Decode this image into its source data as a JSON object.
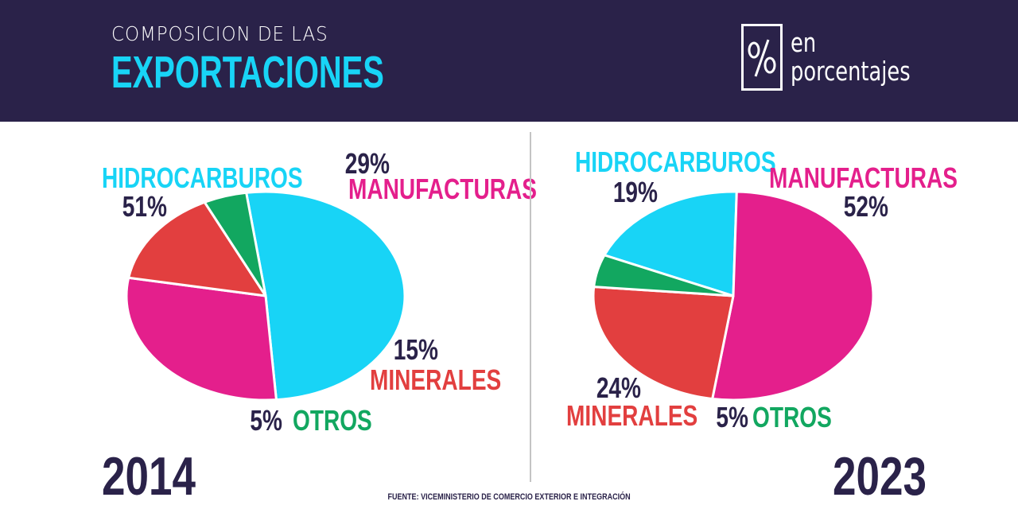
{
  "header": {
    "title_top": "COMPOSICION DE LAS",
    "title_main": "EXPORTACIONES",
    "unit_line1": "en",
    "unit_line2": "porcentajes",
    "unit_icon": "percent-icon"
  },
  "source": "FUENTE: VICEMINISTERIO DE COMERCIO EXTERIOR E INTEGRACIÓN",
  "colors": {
    "header_bg": "#2a2249",
    "title_accent": "#18d4f6",
    "hidrocarburos": "#18d4f6",
    "manufacturas": "#e41f8c",
    "minerales": "#e23f3f",
    "otros": "#12a760",
    "value_text": "#2a2249"
  },
  "chart_data": [
    {
      "type": "pie",
      "title": "2014",
      "categories": [
        "HIDROCARBUROS",
        "MANUFACTURAS",
        "MINERALES",
        "OTROS"
      ],
      "values": [
        51,
        29,
        15,
        5
      ],
      "value_labels": [
        "51%",
        "29%",
        "15%",
        "5%"
      ],
      "colors": [
        "#18d4f6",
        "#e41f8c",
        "#e23f3f",
        "#12a760"
      ]
    },
    {
      "type": "pie",
      "title": "2023",
      "categories": [
        "HIDROCARBUROS",
        "MANUFACTURAS",
        "MINERALES",
        "OTROS"
      ],
      "values": [
        19,
        52,
        24,
        5
      ],
      "value_labels": [
        "19%",
        "52%",
        "24%",
        "5%"
      ],
      "colors": [
        "#18d4f6",
        "#e41f8c",
        "#e23f3f",
        "#12a760"
      ]
    }
  ]
}
